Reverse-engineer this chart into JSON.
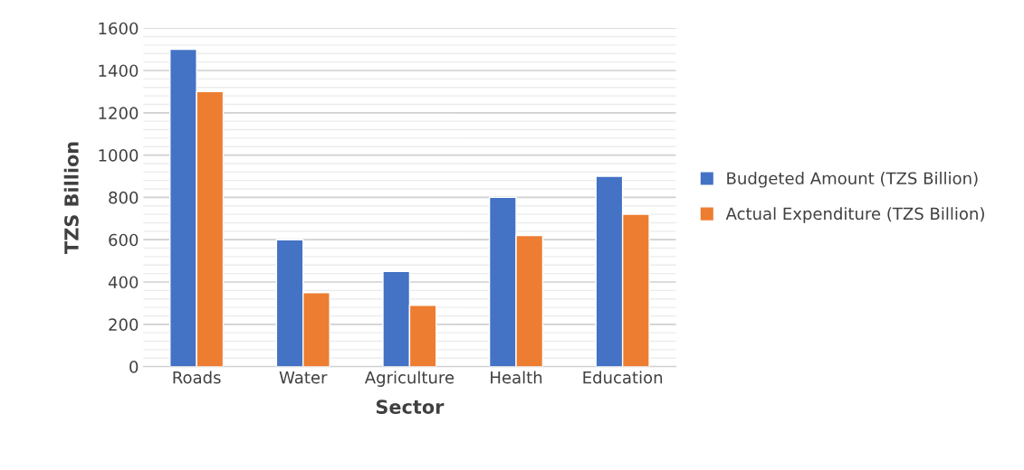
{
  "chart_data": {
    "type": "bar",
    "xlabel": "Sector",
    "ylabel": "TZS Billion",
    "categories": [
      "Roads",
      "Water",
      "Agriculture",
      "Health",
      "Education"
    ],
    "series": [
      {
        "name": "Budgeted Amount (TZS Billion)",
        "color": "#4472c4",
        "values": [
          1500,
          600,
          450,
          800,
          900
        ]
      },
      {
        "name": "Actual Expenditure (TZS Billion)",
        "color": "#ed7d31",
        "values": [
          1300,
          350,
          290,
          620,
          720
        ]
      }
    ],
    "ylim": [
      0,
      1600
    ],
    "yticks": [
      0,
      200,
      400,
      600,
      800,
      1000,
      1200,
      1400,
      1600
    ],
    "grid": "y",
    "legend": "right"
  }
}
